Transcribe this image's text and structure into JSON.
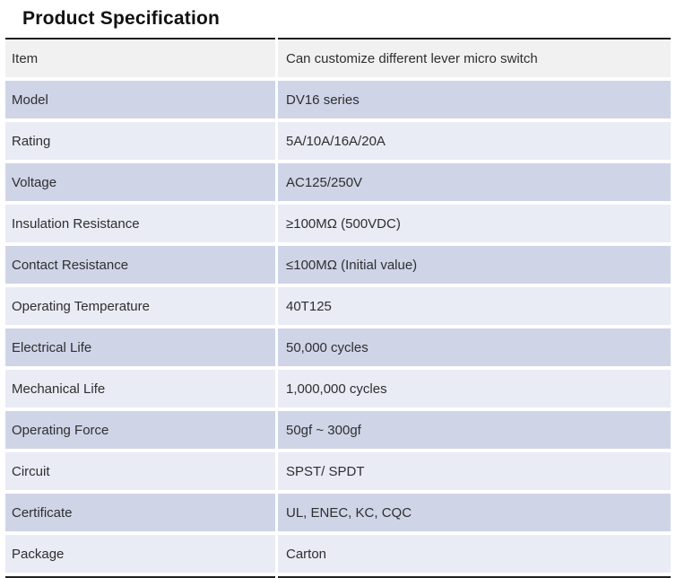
{
  "title": "Product Specification",
  "table": {
    "rows": [
      {
        "label": "Item",
        "value": "Can customize different lever micro switch"
      },
      {
        "label": "Model",
        "value": "DV16 series"
      },
      {
        "label": "Rating",
        "value": "5A/10A/16A/20A"
      },
      {
        "label": "Voltage",
        "value": "AC125/250V"
      },
      {
        "label": "Insulation Resistance",
        "value": "≥100MΩ (500VDC)"
      },
      {
        "label": "Contact Resistance",
        "value": "≤100MΩ (Initial value)"
      },
      {
        "label": "Operating Temperature",
        "value": "40T125"
      },
      {
        "label": "Electrical Life",
        "value": "50,000 cycles"
      },
      {
        "label": "Mechanical Life",
        "value": "1,000,000 cycles"
      },
      {
        "label": "Operating Force",
        "value": "50gf ~ 300gf"
      },
      {
        "label": "Circuit",
        "value": "SPST/ SPDT"
      },
      {
        "label": "Certificate",
        "value": "UL, ENEC, KC, CQC"
      },
      {
        "label": "Package",
        "value": "Carton"
      }
    ]
  },
  "colors": {
    "row_dark": "#cfd4e7",
    "row_light": "#e9ebf5",
    "row_header": "#f1f1f2",
    "border_dark": "#1f1f1f",
    "text": "#2f2f2f",
    "title": "#111111"
  }
}
